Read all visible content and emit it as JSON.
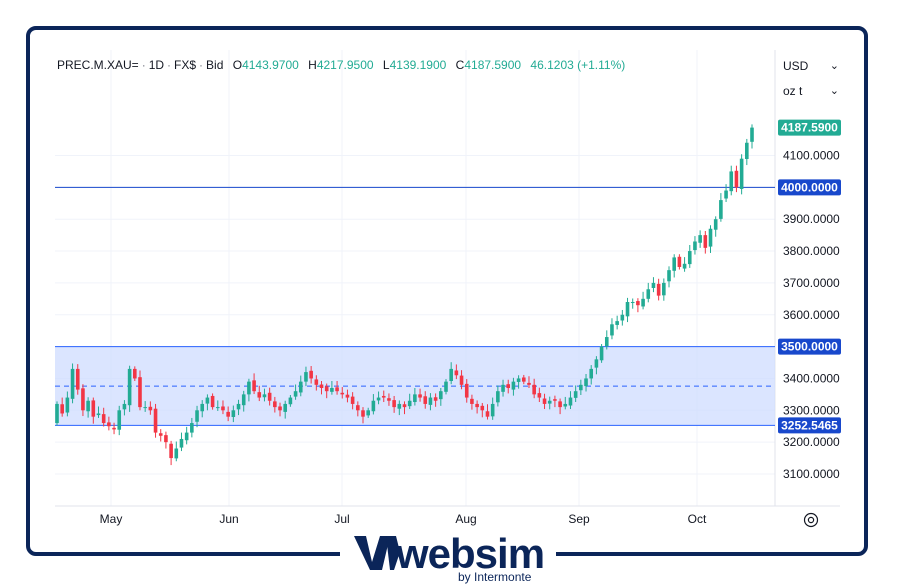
{
  "header": {
    "symbol": "PREC.M.XAU=",
    "interval": "1D",
    "source": "FX$",
    "price_type": "Bid",
    "open_label": "O",
    "open": "4143.9700",
    "high_label": "H",
    "high": "4217.9500",
    "low_label": "L",
    "low": "4139.1900",
    "close_label": "C",
    "close": "4187.5900",
    "change": "46.1203 (+1.11%)"
  },
  "controls": {
    "currency": "USD",
    "unit": "oz t"
  },
  "colors": {
    "up": "#22ab94",
    "down": "#f23645",
    "line": "#2962ff",
    "zone": "#cfdcff",
    "frame": "#0b2559"
  },
  "chart_data": {
    "type": "candlestick",
    "x_ticks": [
      "May",
      "Jun",
      "Jul",
      "Aug",
      "Sep",
      "Oct"
    ],
    "y_ticks": [
      "3100.0000",
      "3200.0000",
      "3300.0000",
      "3400.0000",
      "3500.0000",
      "3600.0000",
      "3700.0000",
      "3800.0000",
      "3900.0000",
      "4000.0000",
      "4100.0000"
    ],
    "y_range": [
      3000,
      4230
    ],
    "grid": true,
    "horizontal_lines": [
      {
        "label": "4000.0000",
        "value": 4000
      }
    ],
    "range_box": {
      "top_label": "3500.0000",
      "top": 3500,
      "bottom_label": "3252.5465",
      "bottom": 3252.5465,
      "mid": 3376
    },
    "last_price_label": "4187.5900",
    "last_price": 4187.59,
    "closes": [
      3320,
      3290,
      3340,
      3430,
      3365,
      3300,
      3330,
      3280,
      3290,
      3260,
      3250,
      3240,
      3300,
      3320,
      3430,
      3400,
      3310,
      3310,
      3300,
      3230,
      3220,
      3200,
      3150,
      3180,
      3210,
      3230,
      3260,
      3300,
      3320,
      3340,
      3310,
      3310,
      3300,
      3280,
      3300,
      3320,
      3350,
      3390,
      3360,
      3340,
      3350,
      3330,
      3310,
      3300,
      3320,
      3340,
      3360,
      3390,
      3420,
      3400,
      3380,
      3370,
      3360,
      3370,
      3360,
      3350,
      3340,
      3320,
      3300,
      3280,
      3300,
      3330,
      3340,
      3340,
      3330,
      3310,
      3320,
      3310,
      3330,
      3350,
      3340,
      3320,
      3340,
      3330,
      3360,
      3390,
      3430,
      3410,
      3380,
      3340,
      3320,
      3310,
      3300,
      3280,
      3320,
      3360,
      3380,
      3370,
      3390,
      3400,
      3390,
      3380,
      3350,
      3340,
      3320,
      3330,
      3330,
      3310,
      3320,
      3340,
      3360,
      3380,
      3400,
      3430,
      3460,
      3500,
      3530,
      3570,
      3580,
      3600,
      3640,
      3640,
      3630,
      3650,
      3680,
      3700,
      3660,
      3700,
      3740,
      3780,
      3750,
      3760,
      3800,
      3830,
      3850,
      3810,
      3870,
      3900,
      3960,
      3990,
      4050,
      4000,
      4090,
      4140,
      4187.59
    ]
  }
}
